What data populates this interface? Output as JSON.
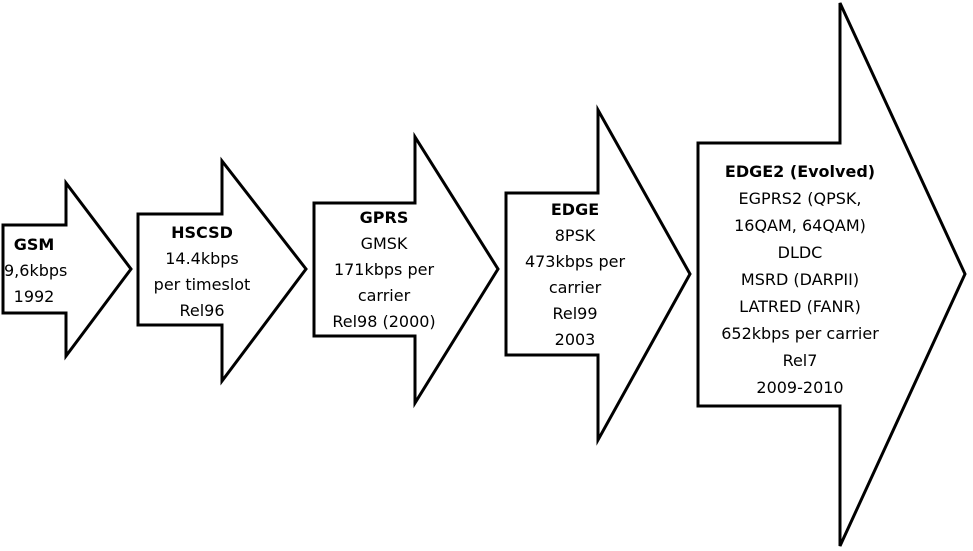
{
  "arrows": [
    {
      "title": "GSM",
      "lines": [
        "9,6kbps",
        "1992"
      ]
    },
    {
      "title": "HSCSD",
      "lines": [
        "14.4kbps",
        "per timeslot",
        "Rel96"
      ]
    },
    {
      "title": "GPRS",
      "lines": [
        "GMSK",
        "171kbps per",
        "carrier",
        "Rel98 (2000)"
      ]
    },
    {
      "title": "EDGE",
      "lines": [
        "8PSK",
        "473kbps per",
        "carrier",
        "Rel99",
        "2003"
      ]
    },
    {
      "title": "EDGE2 (Evolved)",
      "lines": [
        "EGPRS2 (QPSK,",
        "16QAM, 64QAM)",
        "DLDC",
        "MSRD (DARPII)",
        "LATRED (FANR)",
        "652kbps  per carrier",
        "Rel7",
        "2009-2010"
      ]
    }
  ],
  "colors": {
    "stroke": "#000000",
    "fill": "#ffffff",
    "text": "#000000"
  }
}
